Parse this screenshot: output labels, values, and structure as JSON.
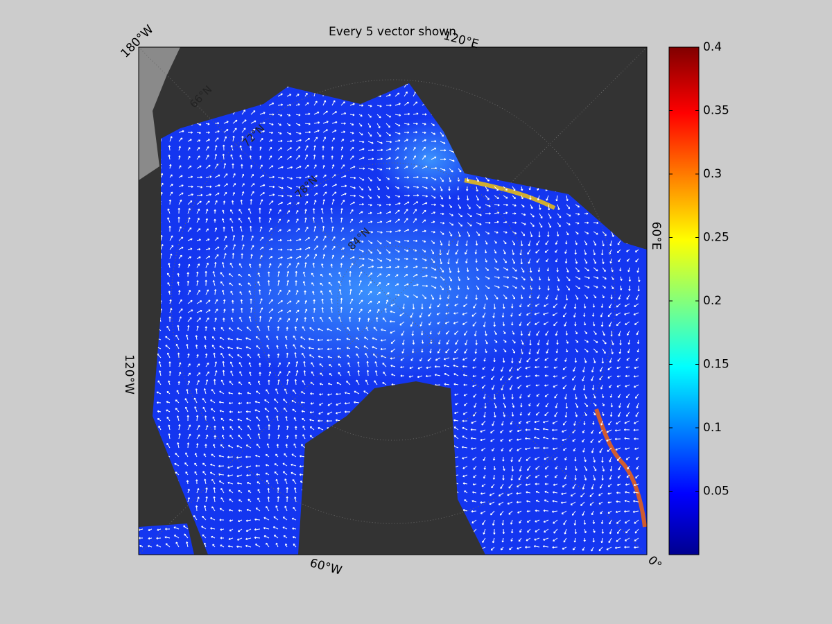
{
  "title": "Every 5 vector shown",
  "longitude_labels": [
    "180°W",
    "120°E",
    "60°E",
    "0°",
    "60°W",
    "120°W"
  ],
  "latitude_labels": [
    "66°N",
    "72°N",
    "78°N",
    "84°N"
  ],
  "colorbar": {
    "lim": [
      0,
      0.4
    ],
    "ticks": [
      0.05,
      0.1,
      0.15,
      0.2,
      0.25,
      0.3,
      0.35,
      0.4
    ]
  }
}
